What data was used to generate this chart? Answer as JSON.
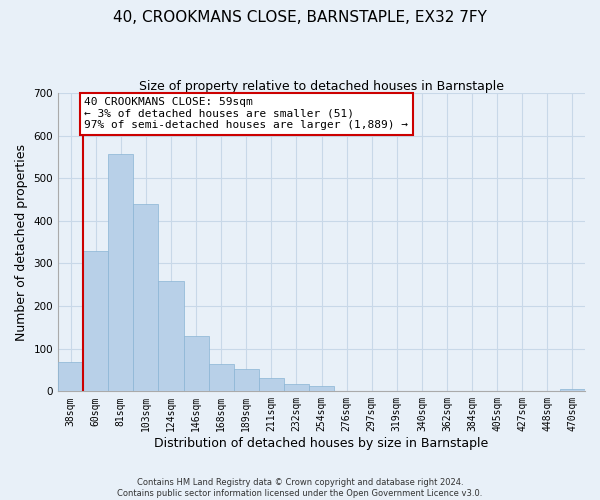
{
  "title": "40, CROOKMANS CLOSE, BARNSTAPLE, EX32 7FY",
  "subtitle": "Size of property relative to detached houses in Barnstaple",
  "xlabel": "Distribution of detached houses by size in Barnstaple",
  "ylabel": "Number of detached properties",
  "footnote1": "Contains HM Land Registry data © Crown copyright and database right 2024.",
  "footnote2": "Contains public sector information licensed under the Open Government Licence v3.0.",
  "bar_labels": [
    "38sqm",
    "60sqm",
    "81sqm",
    "103sqm",
    "124sqm",
    "146sqm",
    "168sqm",
    "189sqm",
    "211sqm",
    "232sqm",
    "254sqm",
    "276sqm",
    "297sqm",
    "319sqm",
    "340sqm",
    "362sqm",
    "384sqm",
    "405sqm",
    "427sqm",
    "448sqm",
    "470sqm"
  ],
  "bar_values": [
    70,
    330,
    558,
    440,
    258,
    130,
    65,
    52,
    32,
    18,
    13,
    0,
    0,
    0,
    0,
    0,
    0,
    0,
    0,
    0,
    5
  ],
  "bar_color": "#b8d0e8",
  "bar_edge_color": "#8ab4d4",
  "highlight_line_color": "#cc0000",
  "annotation_text": "40 CROOKMANS CLOSE: 59sqm\n← 3% of detached houses are smaller (51)\n97% of semi-detached houses are larger (1,889) →",
  "annotation_box_color": "#ffffff",
  "annotation_box_edge": "#cc0000",
  "ylim": [
    0,
    700
  ],
  "yticks": [
    0,
    100,
    200,
    300,
    400,
    500,
    600,
    700
  ],
  "grid_color": "#c8d8e8",
  "bg_color": "#e8f0f8",
  "title_fontsize": 11,
  "subtitle_fontsize": 9,
  "xlabel_fontsize": 9,
  "ylabel_fontsize": 9,
  "tick_fontsize": 7,
  "annotation_fontsize": 8,
  "footnote_fontsize": 6
}
